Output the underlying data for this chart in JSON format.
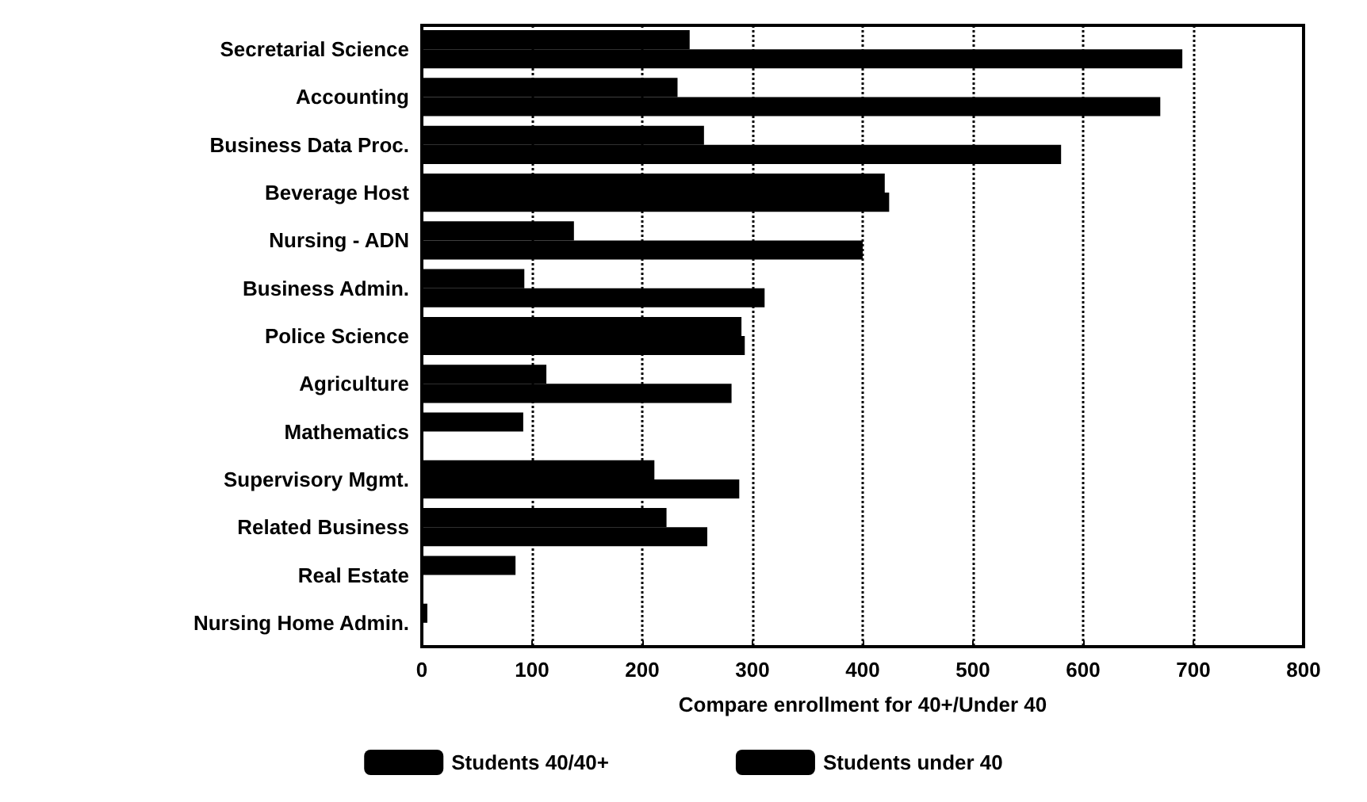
{
  "chart_data": {
    "type": "bar",
    "orientation": "horizontal",
    "xlabel": "Compare enrollment for 40+/Under 40",
    "categories": [
      "Secretarial Science",
      "Accounting",
      "Business Data Proc.",
      "Beverage Host",
      "Nursing - ADN",
      "Business Admin.",
      "Police Science",
      "Agriculture",
      "Mathematics",
      "Supervisory Mgmt.",
      "Related Business",
      "Real Estate",
      "Nursing Home Admin."
    ],
    "series": [
      {
        "name": "Students 40/40+",
        "color": "#000000",
        "values": [
          243,
          232,
          256,
          420,
          138,
          93,
          290,
          113,
          92,
          211,
          222,
          85,
          5
        ]
      },
      {
        "name": "Students under 40",
        "color": "#000000",
        "values": [
          690,
          670,
          580,
          424,
          400,
          311,
          293,
          281,
          null,
          288,
          259,
          null,
          null
        ]
      }
    ],
    "xlim": [
      0,
      800
    ],
    "xticks": [
      0,
      100,
      200,
      300,
      400,
      500,
      600,
      700,
      800
    ],
    "grid": "x",
    "legend": "bottom"
  }
}
